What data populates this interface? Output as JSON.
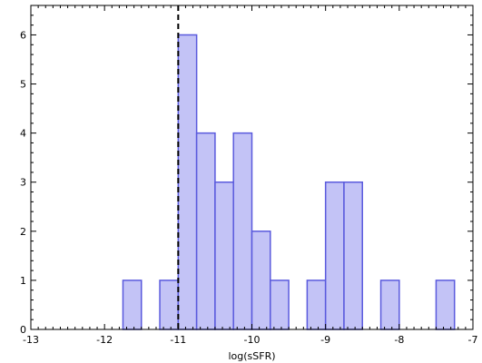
{
  "chart_data": {
    "type": "bar",
    "title": "",
    "xlabel": "log(sSFR)",
    "ylabel": "",
    "xlim": [
      -13,
      -7
    ],
    "ylim": [
      0,
      6.6
    ],
    "bin_width": 0.25,
    "bins": [
      {
        "x0": -11.75,
        "x1": -11.5,
        "count": 1
      },
      {
        "x0": -11.25,
        "x1": -11.0,
        "count": 1
      },
      {
        "x0": -11.0,
        "x1": -10.75,
        "count": 6
      },
      {
        "x0": -10.75,
        "x1": -10.5,
        "count": 4
      },
      {
        "x0": -10.5,
        "x1": -10.25,
        "count": 3
      },
      {
        "x0": -10.25,
        "x1": -10.0,
        "count": 4
      },
      {
        "x0": -10.0,
        "x1": -9.75,
        "count": 2
      },
      {
        "x0": -9.75,
        "x1": -9.5,
        "count": 1
      },
      {
        "x0": -9.25,
        "x1": -9.0,
        "count": 1
      },
      {
        "x0": -9.0,
        "x1": -8.75,
        "count": 3
      },
      {
        "x0": -8.75,
        "x1": -8.5,
        "count": 3
      },
      {
        "x0": -8.25,
        "x1": -8.0,
        "count": 1
      },
      {
        "x0": -7.5,
        "x1": -7.25,
        "count": 1
      }
    ],
    "x_ticks": [
      -13,
      -12,
      -11,
      -10,
      -9,
      -8,
      -7
    ],
    "x_tick_labels": [
      "-13",
      "-12",
      "-11",
      "-10",
      "-9",
      "-8",
      "-7"
    ],
    "y_ticks": [
      0,
      1,
      2,
      3,
      4,
      5,
      6
    ],
    "y_tick_labels": [
      "0",
      "1",
      "2",
      "3",
      "4",
      "5",
      "6"
    ],
    "reference_line": {
      "x": -11,
      "style": "dashed"
    },
    "bar_fill": "#c3c3f6",
    "bar_edge": "#5a5add",
    "grid": false,
    "legend": "none"
  }
}
